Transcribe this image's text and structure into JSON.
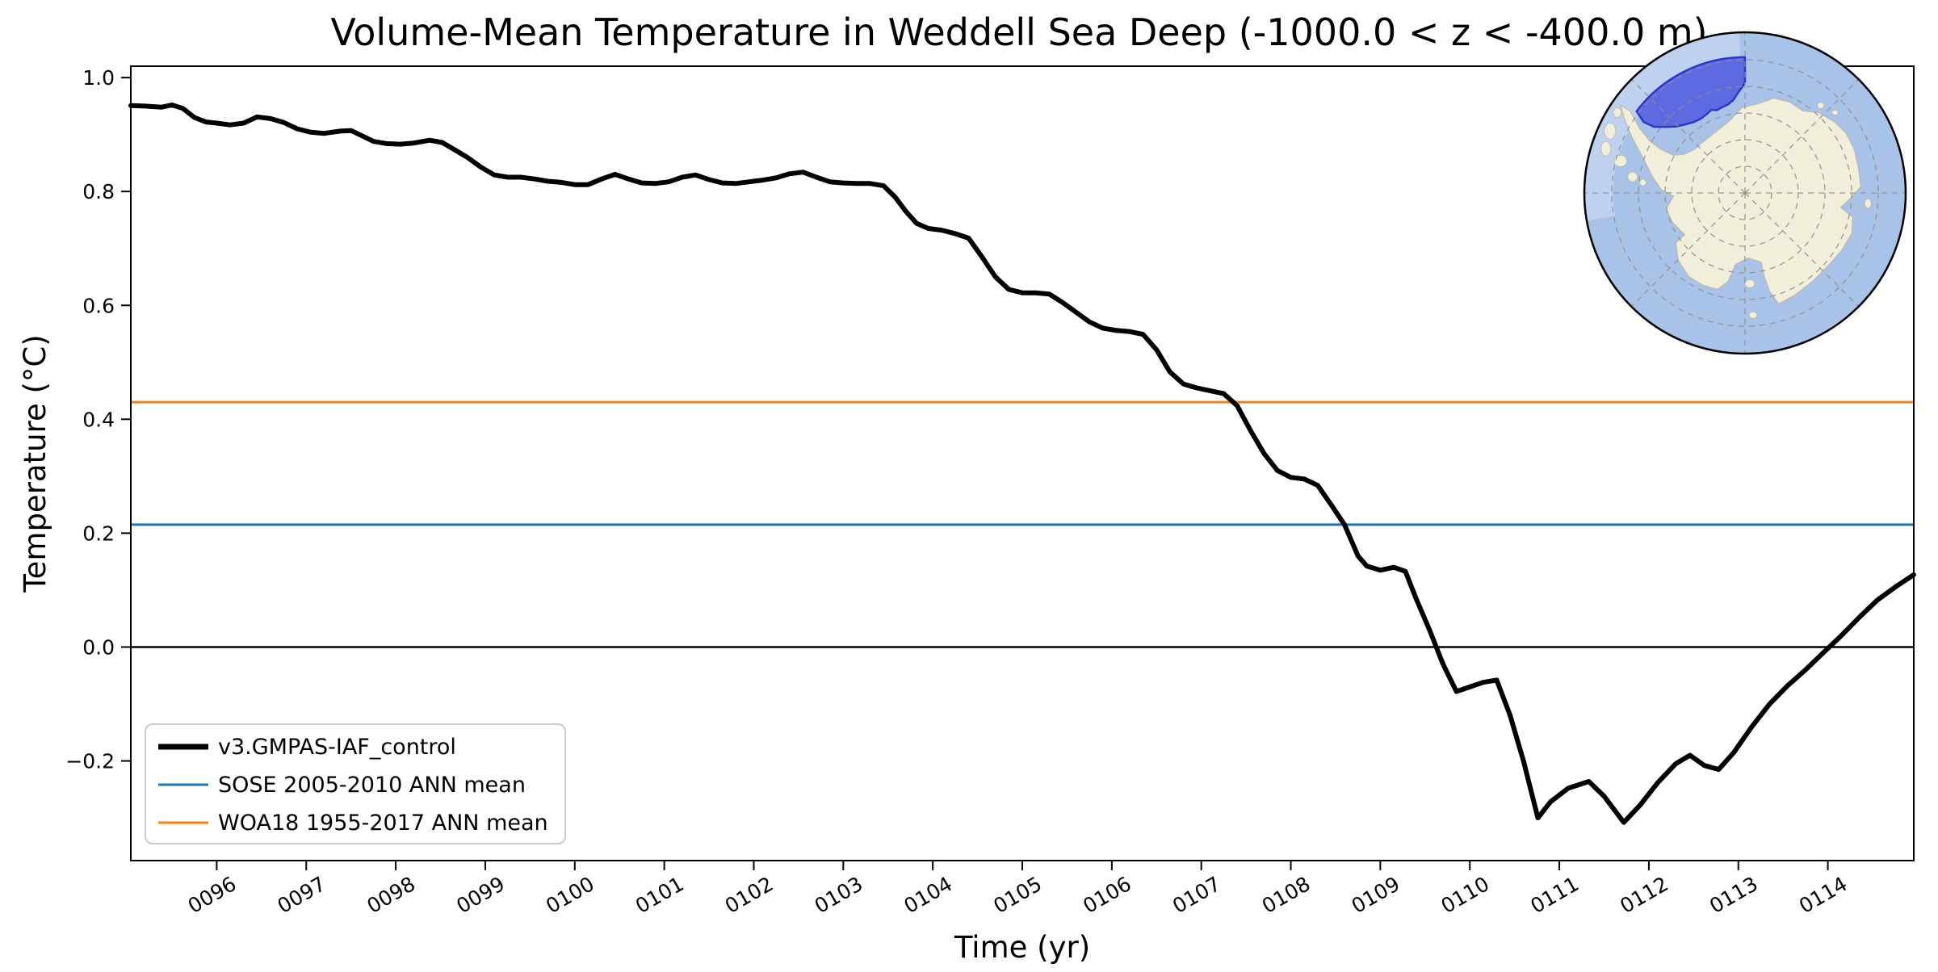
{
  "title": "Volume-Mean Temperature in Weddell Sea Deep (-1000.0 < z < -400.0 m)",
  "axes": {
    "xlabel": "Time (yr)",
    "ylabel": "Temperature (°C)"
  },
  "legend": {
    "items": [
      {
        "label": "v3.GMPAS-IAF_control",
        "color": "#000000",
        "line_width": 7
      },
      {
        "label": "SOSE 2005-2010 ANN mean",
        "color": "#1f77b4",
        "line_width": 3
      },
      {
        "label": "WOA18 1955-2017 ANN mean",
        "color": "#ff7f0e",
        "line_width": 3
      }
    ]
  },
  "chart_data": {
    "type": "line",
    "title": "Volume-Mean Temperature in Weddell Sea Deep (-1000.0 < z < -400.0 m)",
    "xlabel": "Time (yr)",
    "ylabel": "Temperature (°C)",
    "xlim": [
      95.04,
      114.96
    ],
    "ylim": [
      -0.375,
      1.02
    ],
    "grid": false,
    "legend_position": "lower left",
    "x_ticks": {
      "values": [
        96,
        97,
        98,
        99,
        100,
        101,
        102,
        103,
        104,
        105,
        106,
        107,
        108,
        109,
        110,
        111,
        112,
        113,
        114
      ],
      "labels": [
        "0096",
        "0097",
        "0098",
        "0099",
        "0100",
        "0101",
        "0102",
        "0103",
        "0104",
        "0105",
        "0106",
        "0107",
        "0108",
        "0109",
        "0110",
        "0111",
        "0112",
        "0113",
        "0114"
      ],
      "rotation_deg": -30
    },
    "y_ticks": {
      "values": [
        1.0,
        0.8,
        0.6,
        0.4,
        0.2,
        0.0,
        -0.2
      ],
      "labels": [
        "1.0",
        "0.8",
        "0.6",
        "0.4",
        "0.2",
        "0.0",
        "−0.2"
      ]
    },
    "reference_lines": [
      {
        "name": "zero-line",
        "value": 0.0,
        "color": "#000000",
        "width": 2.5
      },
      {
        "name": "SOSE 2005-2010 ANN mean",
        "value": 0.215,
        "color": "#1f77b4",
        "width": 3
      },
      {
        "name": "WOA18 1955-2017 ANN mean",
        "value": 0.43,
        "color": "#ff7f0e",
        "width": 3
      }
    ],
    "series": [
      {
        "name": "v3.GMPAS-IAF_control",
        "color": "#000000",
        "width": 6,
        "points": [
          [
            95.04,
            0.951
          ],
          [
            95.2,
            0.95
          ],
          [
            95.38,
            0.948
          ],
          [
            95.5,
            0.952
          ],
          [
            95.62,
            0.946
          ],
          [
            95.75,
            0.93
          ],
          [
            95.88,
            0.922
          ],
          [
            96.0,
            0.92
          ],
          [
            96.15,
            0.917
          ],
          [
            96.3,
            0.92
          ],
          [
            96.45,
            0.931
          ],
          [
            96.6,
            0.928
          ],
          [
            96.75,
            0.921
          ],
          [
            96.9,
            0.91
          ],
          [
            97.05,
            0.904
          ],
          [
            97.2,
            0.902
          ],
          [
            97.38,
            0.906
          ],
          [
            97.5,
            0.907
          ],
          [
            97.62,
            0.898
          ],
          [
            97.75,
            0.888
          ],
          [
            97.9,
            0.884
          ],
          [
            98.05,
            0.883
          ],
          [
            98.2,
            0.885
          ],
          [
            98.38,
            0.89
          ],
          [
            98.52,
            0.886
          ],
          [
            98.65,
            0.874
          ],
          [
            98.8,
            0.86
          ],
          [
            98.95,
            0.843
          ],
          [
            99.1,
            0.829
          ],
          [
            99.25,
            0.825
          ],
          [
            99.4,
            0.825
          ],
          [
            99.55,
            0.822
          ],
          [
            99.7,
            0.818
          ],
          [
            99.85,
            0.816
          ],
          [
            100.0,
            0.812
          ],
          [
            100.15,
            0.812
          ],
          [
            100.3,
            0.822
          ],
          [
            100.45,
            0.83
          ],
          [
            100.6,
            0.822
          ],
          [
            100.75,
            0.815
          ],
          [
            100.9,
            0.814
          ],
          [
            101.05,
            0.817
          ],
          [
            101.2,
            0.825
          ],
          [
            101.35,
            0.829
          ],
          [
            101.5,
            0.821
          ],
          [
            101.65,
            0.815
          ],
          [
            101.8,
            0.814
          ],
          [
            101.95,
            0.817
          ],
          [
            102.1,
            0.82
          ],
          [
            102.25,
            0.824
          ],
          [
            102.4,
            0.831
          ],
          [
            102.55,
            0.834
          ],
          [
            102.7,
            0.825
          ],
          [
            102.85,
            0.817
          ],
          [
            103.0,
            0.815
          ],
          [
            103.15,
            0.814
          ],
          [
            103.3,
            0.814
          ],
          [
            103.45,
            0.81
          ],
          [
            103.58,
            0.79
          ],
          [
            103.7,
            0.765
          ],
          [
            103.82,
            0.744
          ],
          [
            103.95,
            0.735
          ],
          [
            104.1,
            0.732
          ],
          [
            104.25,
            0.726
          ],
          [
            104.4,
            0.718
          ],
          [
            104.55,
            0.685
          ],
          [
            104.7,
            0.65
          ],
          [
            104.85,
            0.628
          ],
          [
            105.0,
            0.622
          ],
          [
            105.15,
            0.622
          ],
          [
            105.3,
            0.62
          ],
          [
            105.45,
            0.605
          ],
          [
            105.6,
            0.588
          ],
          [
            105.75,
            0.571
          ],
          [
            105.9,
            0.56
          ],
          [
            106.05,
            0.556
          ],
          [
            106.2,
            0.554
          ],
          [
            106.35,
            0.549
          ],
          [
            106.5,
            0.522
          ],
          [
            106.65,
            0.483
          ],
          [
            106.8,
            0.462
          ],
          [
            106.95,
            0.455
          ],
          [
            107.1,
            0.45
          ],
          [
            107.25,
            0.445
          ],
          [
            107.4,
            0.424
          ],
          [
            107.55,
            0.38
          ],
          [
            107.7,
            0.34
          ],
          [
            107.85,
            0.31
          ],
          [
            108.0,
            0.298
          ],
          [
            108.15,
            0.295
          ],
          [
            108.3,
            0.284
          ],
          [
            108.45,
            0.25
          ],
          [
            108.6,
            0.215
          ],
          [
            108.75,
            0.16
          ],
          [
            108.85,
            0.142
          ],
          [
            109.0,
            0.135
          ],
          [
            109.15,
            0.14
          ],
          [
            109.28,
            0.133
          ],
          [
            109.4,
            0.085
          ],
          [
            109.55,
            0.03
          ],
          [
            109.7,
            -0.03
          ],
          [
            109.85,
            -0.078
          ],
          [
            110.0,
            -0.07
          ],
          [
            110.15,
            -0.062
          ],
          [
            110.3,
            -0.058
          ],
          [
            110.45,
            -0.12
          ],
          [
            110.6,
            -0.2
          ],
          [
            110.76,
            -0.3
          ],
          [
            110.9,
            -0.272
          ],
          [
            111.1,
            -0.248
          ],
          [
            111.33,
            -0.236
          ],
          [
            111.5,
            -0.262
          ],
          [
            111.72,
            -0.308
          ],
          [
            111.9,
            -0.278
          ],
          [
            112.1,
            -0.238
          ],
          [
            112.3,
            -0.205
          ],
          [
            112.46,
            -0.19
          ],
          [
            112.62,
            -0.208
          ],
          [
            112.78,
            -0.215
          ],
          [
            112.95,
            -0.185
          ],
          [
            113.15,
            -0.14
          ],
          [
            113.35,
            -0.1
          ],
          [
            113.55,
            -0.068
          ],
          [
            113.75,
            -0.04
          ],
          [
            113.95,
            -0.01
          ],
          [
            114.15,
            0.02
          ],
          [
            114.35,
            0.052
          ],
          [
            114.55,
            0.082
          ],
          [
            114.75,
            0.105
          ],
          [
            114.96,
            0.127
          ]
        ]
      }
    ]
  },
  "inset_map": {
    "region_label": "Weddell Sea",
    "projection": "south-polar-stereographic",
    "colors": {
      "ocean": "#a9c2e7",
      "ocean_light_sector": "#bed2ef",
      "land": "#f1eeda",
      "land_edge": "#b9b6a6",
      "graticule": "#8f8f8f",
      "region_fill": "#4c57de",
      "region_edge": "#2e35cf",
      "outline": "#000000"
    }
  }
}
